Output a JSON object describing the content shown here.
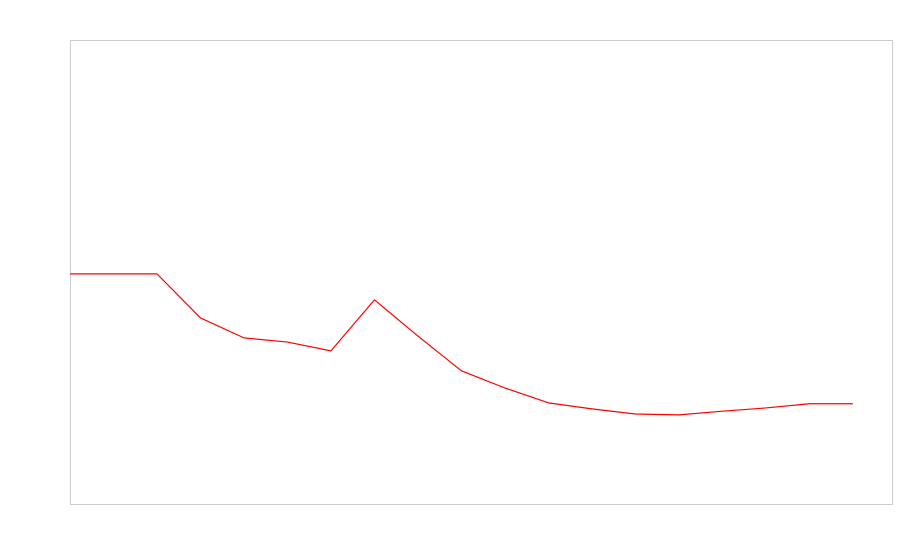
{
  "chart_data": {
    "type": "line",
    "x": [
      0,
      1,
      2,
      3,
      4,
      5,
      6,
      7,
      8,
      9,
      10,
      11,
      12,
      13,
      14,
      15,
      16,
      17,
      18
    ],
    "values": [
      49.6,
      49.6,
      49.6,
      40.1,
      35.8,
      34.9,
      33.0,
      44.0,
      36.2,
      28.7,
      25.0,
      21.8,
      20.5,
      19.4,
      19.2,
      20.0,
      20.7,
      21.6,
      21.6
    ],
    "color": "#ff0000",
    "xlim": [
      0,
      18.9
    ],
    "ylim": [
      0,
      100
    ]
  }
}
